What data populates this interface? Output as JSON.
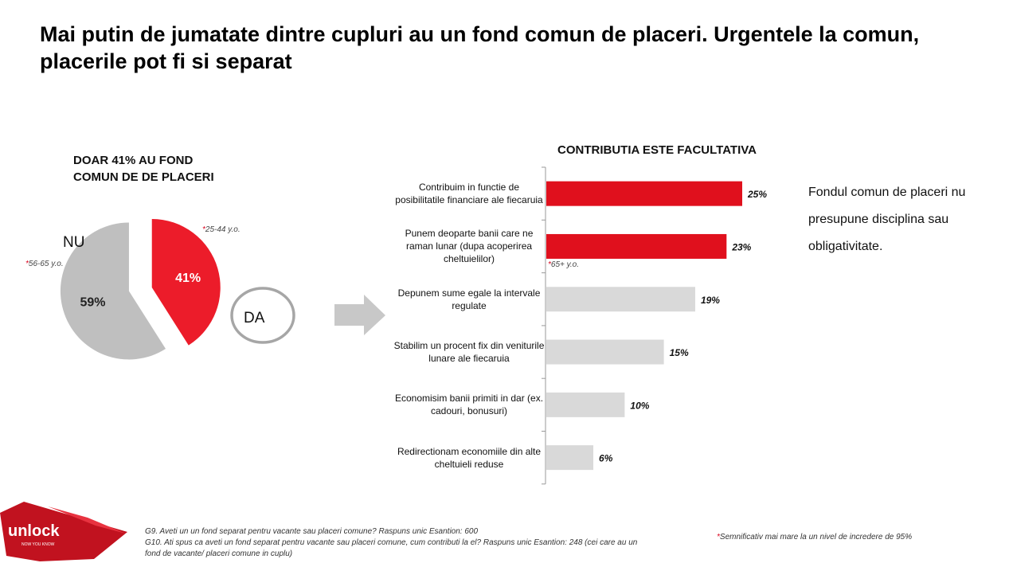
{
  "title": "Mai putin de jumatate dintre cupluri au un fond comun de placeri. Urgentele la comun, placerile pot fi si separat",
  "pie": {
    "heading_line1": "DOAR 41% AU FOND",
    "heading_line2": "COMUN DE DE PLACERI",
    "label_no": "NU",
    "label_yes": "DA",
    "note_no": "56-65 y.o.",
    "note_yes": "25-44 y.o."
  },
  "bars": {
    "heading": "CONTRIBUTIA ESTE FACULTATIVA",
    "note_second": "65+ y.o."
  },
  "side_text": "Fondul comun de placeri nu presupune disciplina sau obligativitate.",
  "footnote_1": "G9. Aveti un un fond separat pentru vacante sau placeri comune? Raspuns unic Esantion: 600",
  "footnote_2": "G10. Ati spus ca aveti un fond separat pentru vacante sau placeri comune, cum contributi la el? Raspuns unic Esantion: 248 (cei care au un fond de vacante/ placeri comune in cuplu)",
  "significance_note": "Semnificativ mai mare la un nivel de incredere de 95%",
  "logo": {
    "text": "unlock",
    "tagline": "NOW YOU KNOW"
  },
  "colors": {
    "highlight": "#e0101d",
    "pie_yes": "#ec1c2a",
    "neutral": "#d9d9d9",
    "pie_no": "#bfbfbf"
  },
  "chart_data": [
    {
      "type": "pie",
      "title": "DOAR 41% AU FOND COMUN DE DE PLACERI",
      "slices": [
        {
          "label": "DA",
          "value": 41,
          "display": "41%",
          "highlight": true
        },
        {
          "label": "NU",
          "value": 59,
          "display": "59%",
          "highlight": false
        }
      ]
    },
    {
      "type": "bar",
      "orientation": "horizontal",
      "title": "CONTRIBUTIA ESTE FACULTATIVA",
      "xlim": [
        0,
        30
      ],
      "categories": [
        "Contribuim in functie de posibilitatile financiare ale fiecaruia",
        "Punem deoparte banii care ne raman lunar (dupa acoperirea cheltuielilor)",
        "Depunem sume egale la intervale regulate",
        "Stabilim un procent fix din veniturile lunare ale fiecaruia",
        "Economisim banii primiti in dar (ex. cadouri, bonusuri)",
        "Redirectionam economiile din alte cheltuieli reduse"
      ],
      "values": [
        25,
        23,
        19,
        15,
        10,
        6
      ],
      "value_labels": [
        "25%",
        "23%",
        "19%",
        "15%",
        "10%",
        "6%"
      ],
      "highlight": [
        true,
        true,
        false,
        false,
        false,
        false
      ]
    }
  ]
}
